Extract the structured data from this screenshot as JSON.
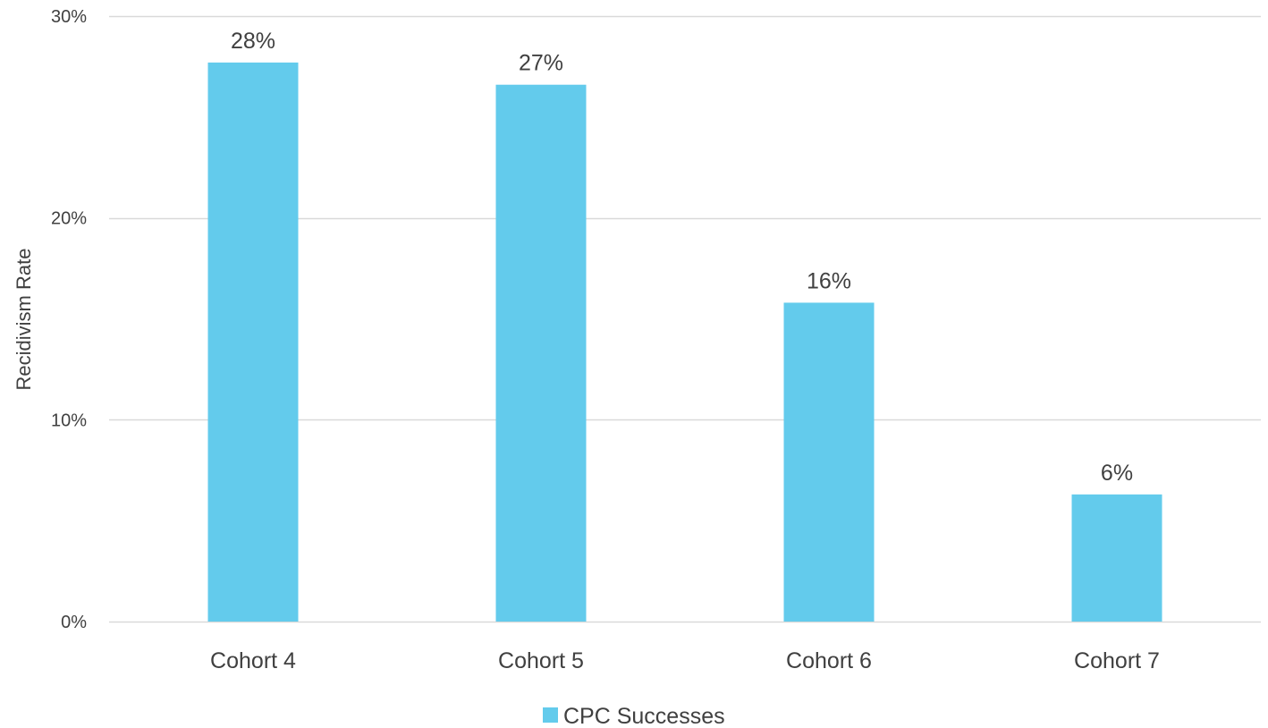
{
  "chart_data": {
    "type": "bar",
    "title": "",
    "xlabel": "",
    "ylabel": "Recidivism Rate",
    "categories": [
      "Cohort 4",
      "Cohort 5",
      "Cohort 6",
      "Cohort 7"
    ],
    "series": [
      {
        "name": "CPC Successes",
        "values": [
          27.7,
          26.6,
          15.8,
          6.3
        ],
        "labels": [
          "28%",
          "27%",
          "16%",
          "6%"
        ],
        "color": "#63CBEC"
      }
    ],
    "ylim": [
      0,
      30
    ],
    "yticks": [
      0,
      10,
      20,
      30
    ],
    "ytick_labels": [
      "0%",
      "10%",
      "20%",
      "30%"
    ],
    "grid": true,
    "gridline_color": "#D9D9D9",
    "legend": "bottom"
  }
}
